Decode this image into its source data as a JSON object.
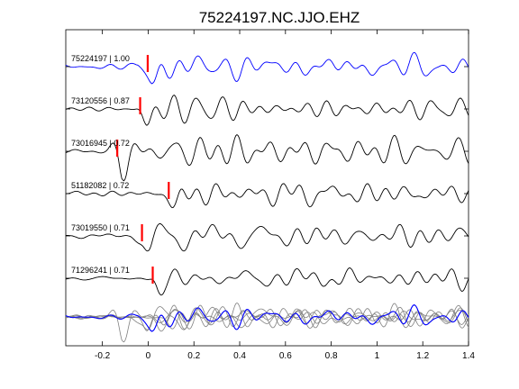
{
  "chart_data": {
    "type": "line",
    "title": "75224197.NC.JJO.EHZ",
    "xlabel": "",
    "ylabel": "",
    "xlim": [
      -0.36,
      1.4
    ],
    "xticks": [
      -0.2,
      0,
      0.2,
      0.4,
      0.6,
      0.8,
      1,
      1.2,
      1.4
    ],
    "xtick_labels": [
      "-0.2",
      "0",
      "0.2",
      "0.4",
      "0.6",
      "0.8",
      "1",
      "1.2",
      "1.4"
    ],
    "grid": false,
    "legend": "none",
    "colors": {
      "reference": "#0000ff",
      "trace": "#000000",
      "stack_gray": "#808080",
      "pick": "#ff0000",
      "axes": "#000000"
    },
    "series": [
      {
        "label": "75224197 | 1.00",
        "pick_time": -0.002,
        "reference": true
      },
      {
        "label": "73120556 | 0.87",
        "pick_time": -0.035,
        "reference": false
      },
      {
        "label": "73016945 | 0.72",
        "pick_time": -0.135,
        "reference": false
      },
      {
        "label": "51182082 | 0.72",
        "pick_time": 0.09,
        "reference": false
      },
      {
        "label": "73019550 | 0.71",
        "pick_time": -0.027,
        "reference": false
      },
      {
        "label": "71296241 | 0.71",
        "pick_time": 0.02,
        "reference": false
      }
    ],
    "overlay": {
      "description_shown": false,
      "trace_count": 6
    }
  }
}
